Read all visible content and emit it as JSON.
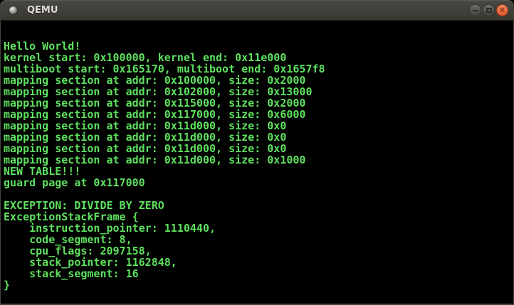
{
  "window": {
    "title": "QEMU",
    "close_glyph": "✕",
    "controls": [
      "minimize",
      "maximize",
      "close"
    ]
  },
  "theme": {
    "titlebar_top": "#4a4843",
    "titlebar_bottom": "#393731",
    "titlebar_text": "#dfdcd7",
    "button_face": "#474540",
    "close_button": "#e4582c",
    "window_border": "#454440",
    "terminal_bg": "#000000",
    "terminal_text": "#5ee05e"
  },
  "terminal": {
    "lines": [
      "",
      "Hello World!",
      "kernel start: 0x100000, kernel end: 0x11e000",
      "multiboot start: 0x165170, multiboot end: 0x1657f8",
      "mapping section at addr: 0x100000, size: 0x2000",
      "mapping section at addr: 0x102000, size: 0x13000",
      "mapping section at addr: 0x115000, size: 0x2000",
      "mapping section at addr: 0x117000, size: 0x6000",
      "mapping section at addr: 0x11d000, size: 0x0",
      "mapping section at addr: 0x11d000, size: 0x0",
      "mapping section at addr: 0x11d000, size: 0x0",
      "mapping section at addr: 0x11d000, size: 0x1000",
      "NEW TABLE!!!",
      "guard page at 0x117000",
      "",
      "EXCEPTION: DIVIDE BY ZERO",
      "ExceptionStackFrame {",
      "    instruction_pointer: 1110440,",
      "    code_segment: 8,",
      "    cpu_flags: 2097158,",
      "    stack_pointer: 1162848,",
      "    stack_segment: 16",
      "}"
    ]
  }
}
